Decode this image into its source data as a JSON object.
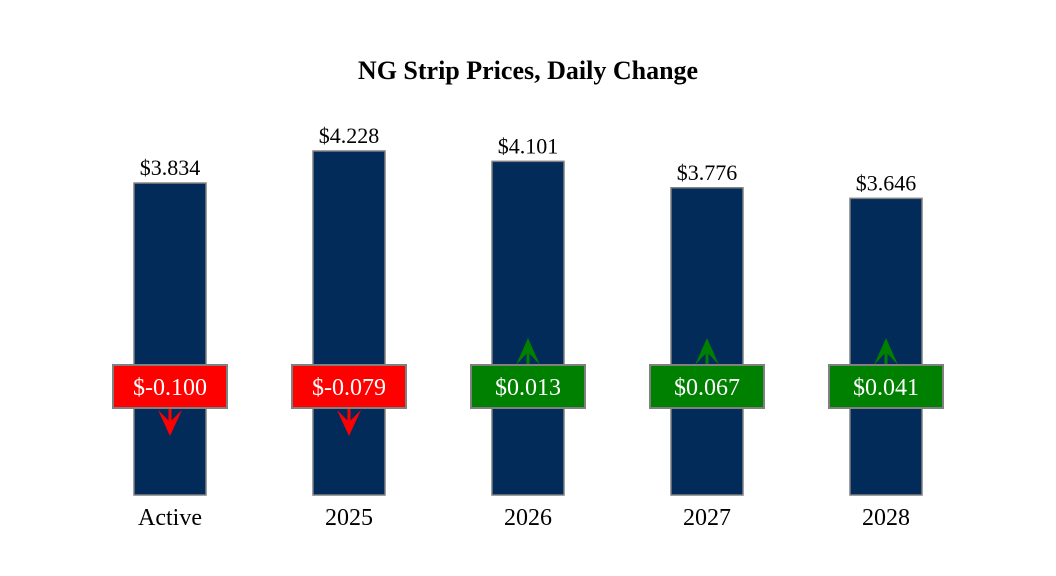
{
  "chart_data": {
    "type": "bar",
    "title": "NG Strip Prices, Daily Change",
    "xlabel": "",
    "ylabel": "",
    "categories": [
      "Active",
      "2025",
      "2026",
      "2027",
      "2028"
    ],
    "values": [
      3.834,
      4.228,
      4.101,
      3.776,
      3.646
    ],
    "value_labels": [
      "$3.834",
      "$4.228",
      "$4.101",
      "$3.776",
      "$3.646"
    ],
    "changes": [
      -0.1,
      -0.079,
      0.013,
      0.067,
      0.041
    ],
    "change_labels": [
      "$-0.100",
      "$-0.079",
      "$0.013",
      "$0.067",
      "$0.041"
    ],
    "ylim": [
      0,
      4.228
    ],
    "grid": false,
    "colors": {
      "bar": "#022b5a",
      "bar_border": "#808080",
      "down": "#ff0000",
      "up": "#008000",
      "box_border": "#808080"
    }
  }
}
